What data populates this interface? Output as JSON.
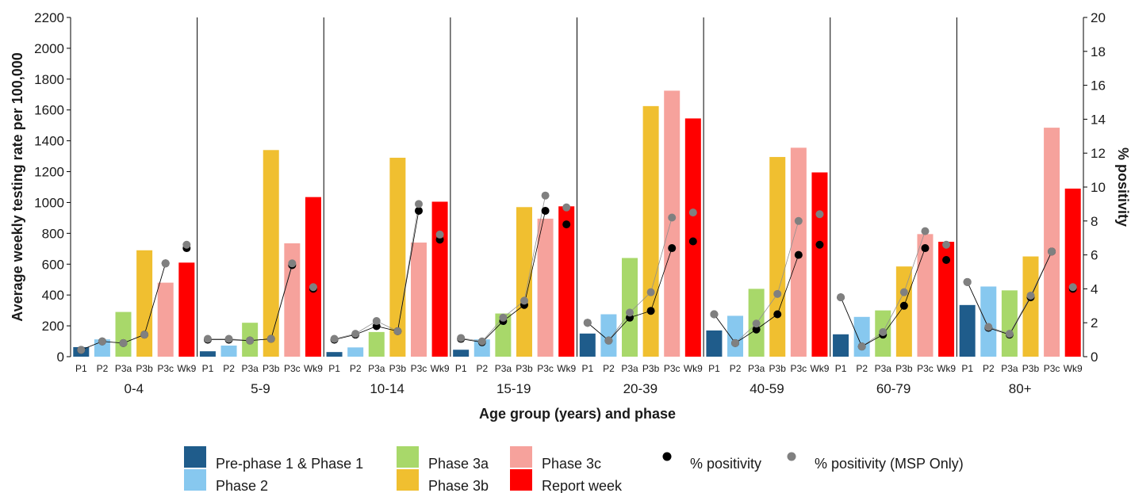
{
  "chart_data": {
    "type": "bar",
    "xlabel": "Age group (years) and phase",
    "ylabel": "Average weekly testing rate per 100,000",
    "y2label": "% positivity",
    "ylim": [
      0,
      2200
    ],
    "y2lim": [
      0,
      20
    ],
    "yticks": [
      0,
      200,
      400,
      600,
      800,
      1000,
      1200,
      1400,
      1600,
      1800,
      2000,
      2200
    ],
    "y2ticks": [
      0,
      2,
      4,
      6,
      8,
      10,
      12,
      14,
      16,
      18,
      20
    ],
    "grid": false,
    "legend_position": "bottom",
    "groups": [
      "0-4",
      "5-9",
      "10-14",
      "15-19",
      "20-39",
      "40-59",
      "60-79",
      "80+"
    ],
    "phases": [
      "P1",
      "P2",
      "P3a",
      "P3b",
      "P3c",
      "Wk9"
    ],
    "series": [
      {
        "name": "Pre-phase 1 & Phase 1",
        "color": "#1f5c8b",
        "values": [
          62,
          35,
          30,
          45,
          150,
          170,
          145,
          335
        ]
      },
      {
        "name": "Phase 2",
        "color": "#87c8ef",
        "values": [
          112,
          72,
          60,
          112,
          275,
          265,
          258,
          455
        ]
      },
      {
        "name": "Phase 3a",
        "color": "#a8d86a",
        "values": [
          290,
          220,
          160,
          280,
          640,
          440,
          300,
          430
        ]
      },
      {
        "name": "Phase 3b",
        "color": "#f0bf30",
        "values": [
          690,
          1340,
          1290,
          970,
          1625,
          1295,
          585,
          650
        ]
      },
      {
        "name": "Phase 3c",
        "color": "#f6a29c",
        "values": [
          480,
          735,
          740,
          895,
          1725,
          1355,
          795,
          1485
        ]
      },
      {
        "name": "Report week",
        "color": "#ff0000",
        "values": [
          610,
          1035,
          1005,
          975,
          1545,
          1195,
          745,
          1090
        ]
      }
    ],
    "positivity": {
      "name": "% positivity",
      "color": "#000000",
      "values": [
        [
          0.4,
          0.9,
          0.8,
          1.3,
          5.5,
          6.4
        ],
        [
          1.0,
          1.0,
          0.95,
          1.05,
          5.4,
          4.0
        ],
        [
          1.0,
          1.3,
          1.8,
          1.5,
          8.6,
          6.9
        ],
        [
          1.05,
          0.85,
          2.1,
          3.05,
          8.6,
          7.8
        ],
        [
          2.0,
          0.95,
          2.3,
          2.7,
          6.4,
          6.8
        ],
        [
          2.5,
          0.8,
          1.6,
          2.5,
          6.0,
          6.6
        ],
        [
          3.5,
          0.6,
          1.3,
          3.0,
          6.4,
          5.7
        ],
        [
          4.4,
          1.7,
          1.3,
          3.5,
          6.2,
          4.0
        ]
      ]
    },
    "positivity_msp": {
      "name": "% positivity (MSP Only)",
      "color": "#808080",
      "values": [
        [
          0.4,
          0.9,
          0.8,
          1.3,
          5.5,
          6.6
        ],
        [
          1.05,
          1.05,
          0.95,
          1.05,
          5.5,
          4.1
        ],
        [
          1.05,
          1.35,
          2.1,
          1.5,
          9.0,
          7.2
        ],
        [
          1.1,
          0.9,
          2.3,
          3.3,
          9.5,
          8.8
        ],
        [
          2.0,
          0.95,
          2.6,
          3.8,
          8.2,
          8.5
        ],
        [
          2.5,
          0.8,
          1.95,
          3.7,
          8.0,
          8.4
        ],
        [
          3.5,
          0.6,
          1.45,
          3.8,
          7.4,
          6.6
        ],
        [
          4.4,
          1.75,
          1.35,
          3.6,
          6.2,
          4.1
        ]
      ]
    }
  }
}
